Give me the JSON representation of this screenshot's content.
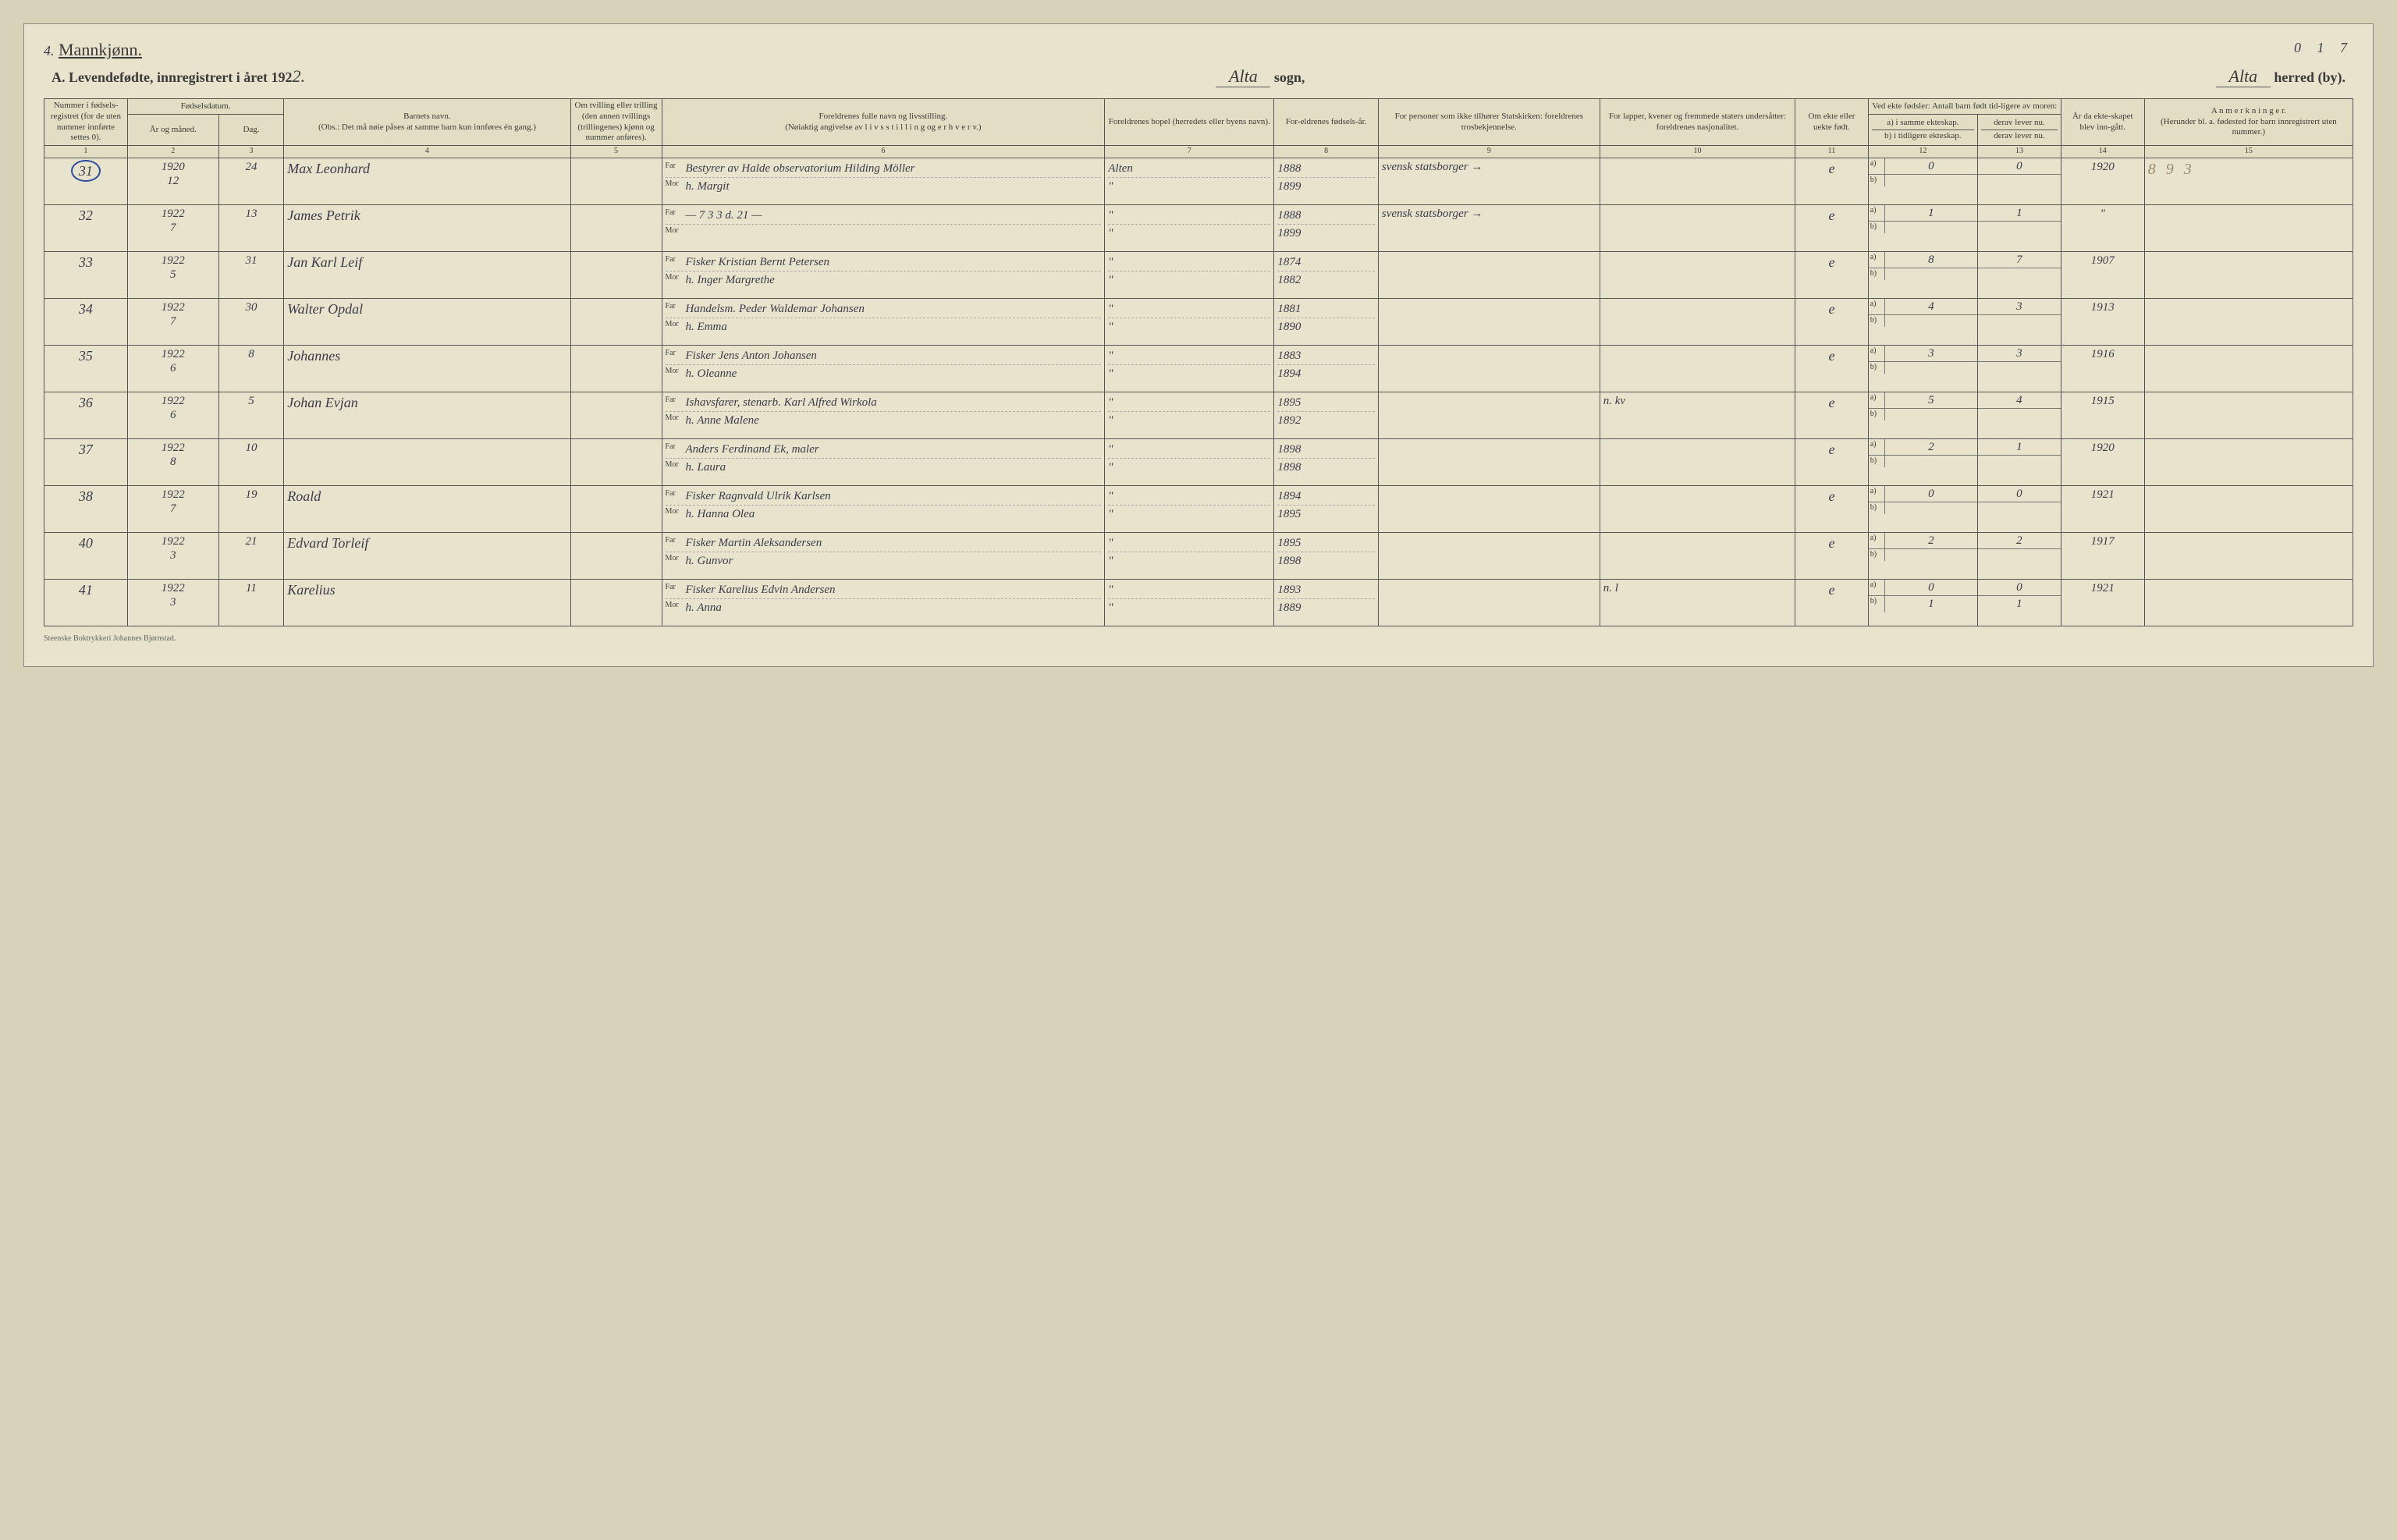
{
  "top": {
    "left_num": "4.",
    "left_print": "Mannkjønn.",
    "right_num": "0 1 7"
  },
  "title": {
    "prefix": "A.  Levendefødte, innregistrert i året 192",
    "year_digit": "2.",
    "sogn_hand": "Alta",
    "sogn_print": "sogn,",
    "herred_hand": "Alta",
    "herred_print": "herred (by)."
  },
  "headers": {
    "c1": "Nummer i fødsels-registret (for de uten nummer innførte settes 0).",
    "c2_top": "Fødselsdatum.",
    "c2": "År og måned.",
    "c3": "Dag.",
    "c4": "Barnets navn.\n(Obs.: Det må nøie påses at samme barn kun innføres én gang.)",
    "c5": "Om tvilling eller trilling (den annen tvillings (trillingenes) kjønn og nummer anføres).",
    "c6": "Foreldrenes fulle navn og livsstilling.\n(Nøiaktig angivelse av  l i v s s t i l l i n g  og  e r h v e r v.)",
    "c7": "Foreldrenes bopel (herredets eller byens navn).",
    "c8": "For-eldrenes fødsels-år.",
    "c9": "For personer som ikke tilhører Statskirken: foreldrenes trosbekjennelse.",
    "c10": "For lapper, kvener og fremmede staters undersåtter: foreldrenes nasjonalitet.",
    "c11": "Om ekte eller uekte født.",
    "c12_top": "Ved ekte fødsler: Antall barn født tid-ligere av moren:",
    "c12a": "a) i samme ekteskap.",
    "c12b": "b) i tidligere ekteskap.",
    "c13_top": "derav lever nu.",
    "c13b": "derav lever nu.",
    "c14": "År da ekte-skapet blev inn-gått.",
    "c15": "A n m e r k n i n g e r.\n(Herunder bl. a. fødested for barn innregistrert uten nummer.)"
  },
  "colnums": [
    "1",
    "2",
    "3",
    "4",
    "5",
    "6",
    "7",
    "8",
    "9",
    "10",
    "11",
    "12",
    "13",
    "14",
    "15"
  ],
  "far_label": "Far",
  "mor_label": "Mor",
  "rows": [
    {
      "num": "31",
      "circled": true,
      "year_month": "1920\n12",
      "day": "24",
      "name": "Max Leonhard",
      "far": "Bestyrer av Halde observatorium Hilding Möller",
      "mor": "h. Margit",
      "bopel_far": "Alten",
      "bopel_mor": "\"",
      "fyr_far": "1888",
      "fyr_mor": "1899",
      "tros": "svensk statsborger →",
      "nat": "",
      "ekte": "e",
      "a12": "0",
      "b12": "",
      "a13": "0",
      "ektYear": "1920",
      "anm": "8 9 3"
    },
    {
      "num": "32",
      "year_month": "1922\n7",
      "day": "13",
      "name": "James Petrik",
      "far": "— 7 3 3  d. 21 —",
      "mor": "",
      "bopel_far": "\"",
      "bopel_mor": "\"",
      "fyr_far": "1888",
      "fyr_mor": "1899",
      "tros": "svensk statsborger →",
      "nat": "",
      "ekte": "e",
      "a12": "1",
      "b12": "",
      "a13": "1",
      "ektYear": "\"",
      "anm": ""
    },
    {
      "num": "33",
      "year_month": "1922\n5",
      "day": "31",
      "name": "Jan Karl Leif",
      "far": "Fisker Kristian Bernt Petersen",
      "mor": "h. Inger Margrethe",
      "bopel_far": "\"",
      "bopel_mor": "\"",
      "fyr_far": "1874",
      "fyr_mor": "1882",
      "tros": "",
      "nat": "",
      "ekte": "e",
      "a12": "8",
      "b12": "",
      "a13": "7",
      "ektYear": "1907",
      "anm": ""
    },
    {
      "num": "34",
      "year_month": "1922\n7",
      "day": "30",
      "name": "Walter Opdal",
      "far": "Handelsm. Peder Waldemar Johansen",
      "mor": "h. Emma",
      "bopel_far": "\"",
      "bopel_mor": "\"",
      "fyr_far": "1881",
      "fyr_mor": "1890",
      "tros": "",
      "nat": "",
      "ekte": "e",
      "a12": "4",
      "b12": "",
      "a13": "3",
      "ektYear": "1913",
      "anm": ""
    },
    {
      "num": "35",
      "year_month": "1922\n6",
      "day": "8",
      "name": "Johannes",
      "far": "Fisker Jens Anton Johansen",
      "mor": "h. Oleanne",
      "bopel_far": "\"",
      "bopel_mor": "\"",
      "fyr_far": "1883",
      "fyr_mor": "1894",
      "tros": "",
      "nat": "",
      "ekte": "e",
      "a12": "3",
      "b12": "",
      "a13": "3",
      "ektYear": "1916",
      "anm": ""
    },
    {
      "num": "36",
      "year_month": "1922\n6",
      "day": "5",
      "name": "Johan Evjan",
      "far": "Ishavsfarer, stenarb. Karl Alfred Wirkola",
      "mor": "h. Anne Malene",
      "bopel_far": "\"",
      "bopel_mor": "\"",
      "fyr_far": "1895",
      "fyr_mor": "1892",
      "tros": "",
      "nat": "n. kv",
      "ekte": "e",
      "a12": "5",
      "b12": "",
      "a13": "4",
      "ektYear": "1915",
      "anm": ""
    },
    {
      "num": "37",
      "year_month": "1922\n8",
      "day": "10",
      "name": "",
      "far": "Anders Ferdinand Ek,  maler",
      "mor": "h. Laura",
      "bopel_far": "\"",
      "bopel_mor": "\"",
      "fyr_far": "1898",
      "fyr_mor": "1898",
      "tros": "",
      "nat": "",
      "ekte": "e",
      "a12": "2",
      "b12": "",
      "a13": "1",
      "ektYear": "1920",
      "anm": ""
    },
    {
      "num": "38",
      "year_month": "1922\n7",
      "day": "19",
      "name": "Roald",
      "far": "Fisker Ragnvald Ulrik Karlsen",
      "mor": "h. Hanna Olea",
      "bopel_far": "\"",
      "bopel_mor": "\"",
      "fyr_far": "1894",
      "fyr_mor": "1895",
      "tros": "",
      "nat": "",
      "ekte": "e",
      "a12": "0",
      "b12": "",
      "a13": "0",
      "ektYear": "1921",
      "anm": ""
    },
    {
      "num": "40",
      "year_month": "1922\n3",
      "day": "21",
      "name": "Edvard Torleif",
      "far": "Fisker Martin Aleksandersen",
      "mor": "h. Gunvor",
      "bopel_far": "\"",
      "bopel_mor": "\"",
      "fyr_far": "1895",
      "fyr_mor": "1898",
      "tros": "",
      "nat": "",
      "ekte": "e",
      "a12": "2",
      "b12": "",
      "a13": "2",
      "ektYear": "1917",
      "anm": ""
    },
    {
      "num": "41",
      "year_month": "1922\n3",
      "day": "11",
      "name": "Karelius",
      "far": "Fisker Karelius Edvin Andersen",
      "mor": "h. Anna",
      "bopel_far": "\"",
      "bopel_mor": "\"",
      "fyr_far": "1893",
      "fyr_mor": "1889",
      "tros": "",
      "nat": "n. l",
      "ekte": "e",
      "a12": "0",
      "b12": "1",
      "a13": "0",
      "b13": "1",
      "ektYear": "1921",
      "anm": ""
    }
  ],
  "footer": "Steenske Boktrykkeri Johannes Bjørnstad."
}
